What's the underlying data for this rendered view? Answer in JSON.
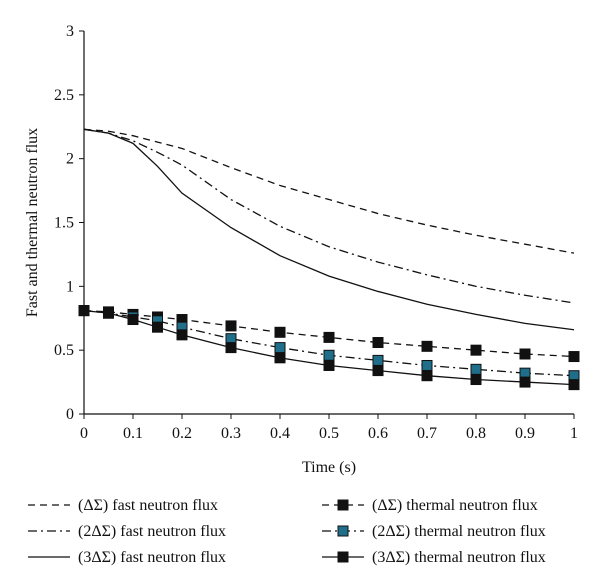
{
  "chart_data": {
    "type": "line",
    "title": "",
    "xlabel": "Time (s)",
    "ylabel": "Fast and thermal neutron flux",
    "xlim": [
      0,
      1
    ],
    "ylim": [
      0,
      3
    ],
    "x_ticks": [
      "0",
      "0.1",
      "0.2",
      "0.3",
      "0.4",
      "0.5",
      "0.6",
      "0.7",
      "0.8",
      "0.9",
      "1"
    ],
    "y_ticks": [
      "0",
      "0.5",
      "1",
      "1.5",
      "2",
      "2.5",
      "3"
    ],
    "grid": false,
    "legend_position": "bottom",
    "series": [
      {
        "name": "(ΔΣ) fast neutron flux",
        "style": "dashed",
        "marker": "none",
        "color": "#111111",
        "x": [
          0,
          0.05,
          0.1,
          0.15,
          0.2,
          0.3,
          0.4,
          0.5,
          0.6,
          0.7,
          0.8,
          0.9,
          1
        ],
        "y": [
          2.23,
          2.215,
          2.18,
          2.13,
          2.08,
          1.93,
          1.79,
          1.68,
          1.57,
          1.48,
          1.4,
          1.33,
          1.26
        ]
      },
      {
        "name": "(2ΔΣ) fast neutron flux",
        "style": "dashdot",
        "marker": "none",
        "color": "#111111",
        "x": [
          0,
          0.05,
          0.1,
          0.15,
          0.2,
          0.3,
          0.4,
          0.5,
          0.6,
          0.7,
          0.8,
          0.9,
          1
        ],
        "y": [
          2.23,
          2.2,
          2.14,
          2.05,
          1.95,
          1.68,
          1.47,
          1.31,
          1.19,
          1.09,
          1.0,
          0.93,
          0.87
        ]
      },
      {
        "name": "(3ΔΣ) fast neutron flux",
        "style": "solid",
        "marker": "none",
        "color": "#111111",
        "x": [
          0,
          0.05,
          0.1,
          0.15,
          0.2,
          0.3,
          0.4,
          0.5,
          0.6,
          0.7,
          0.8,
          0.9,
          1
        ],
        "y": [
          2.23,
          2.2,
          2.12,
          1.94,
          1.73,
          1.46,
          1.24,
          1.08,
          0.96,
          0.86,
          0.78,
          0.71,
          0.66
        ]
      },
      {
        "name": "(ΔΣ) thermal neutron flux",
        "style": "dashed",
        "marker": "square",
        "color": "#111111",
        "marker_fill": "#111111",
        "x": [
          0,
          0.05,
          0.1,
          0.15,
          0.2,
          0.3,
          0.4,
          0.5,
          0.6,
          0.7,
          0.8,
          0.9,
          1
        ],
        "y": [
          0.81,
          0.8,
          0.78,
          0.76,
          0.74,
          0.69,
          0.64,
          0.6,
          0.56,
          0.53,
          0.5,
          0.47,
          0.45
        ]
      },
      {
        "name": "(2ΔΣ) thermal neutron flux",
        "style": "dashdot",
        "marker": "square",
        "color": "#111111",
        "marker_fill": "#1f6f8b",
        "x": [
          0,
          0.05,
          0.1,
          0.15,
          0.2,
          0.3,
          0.4,
          0.5,
          0.6,
          0.7,
          0.8,
          0.9,
          1
        ],
        "y": [
          0.81,
          0.79,
          0.76,
          0.73,
          0.68,
          0.59,
          0.52,
          0.46,
          0.42,
          0.38,
          0.35,
          0.32,
          0.3
        ]
      },
      {
        "name": "(3ΔΣ) thermal neutron flux",
        "style": "solid",
        "marker": "square",
        "color": "#111111",
        "marker_fill": "#111111",
        "x": [
          0,
          0.05,
          0.1,
          0.15,
          0.2,
          0.3,
          0.4,
          0.5,
          0.6,
          0.7,
          0.8,
          0.9,
          1
        ],
        "y": [
          0.81,
          0.79,
          0.74,
          0.68,
          0.62,
          0.52,
          0.44,
          0.38,
          0.34,
          0.3,
          0.27,
          0.25,
          0.23
        ]
      }
    ]
  }
}
